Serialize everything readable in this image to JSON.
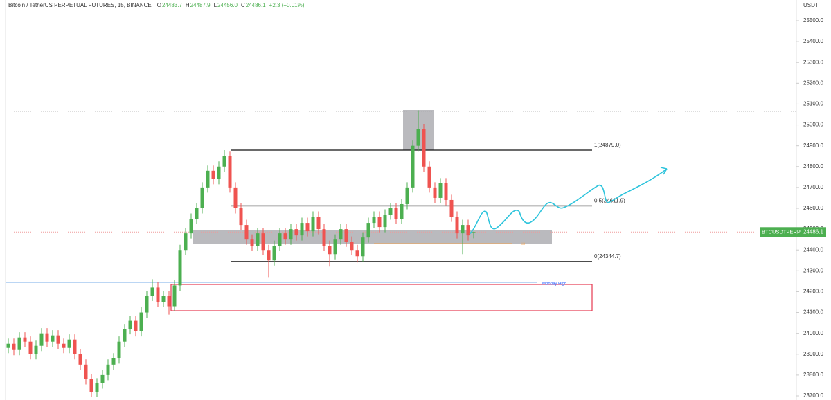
{
  "chart_data": {
    "type": "candlestick",
    "title": "Bitcoin / TetherUS PERPETUAL FUTURES, 15, BINANCE",
    "ohlc_info": [
      {
        "key": "O",
        "value": "24483.7"
      },
      {
        "key": "H",
        "value": "24487.9"
      },
      {
        "key": "L",
        "value": "24456.0"
      },
      {
        "key": "C",
        "value": "24486.1"
      }
    ],
    "change": "+2.3 (+0.01%)",
    "y_axis_title": "USDT",
    "up_color": "#4caf50",
    "down_color": "#ef5350",
    "open": [
      23930,
      23950,
      23920,
      23980,
      23960,
      23900,
      23940,
      24000,
      23960,
      23990,
      23950,
      23930,
      23970,
      23900,
      23850,
      23780,
      23720,
      23760,
      23800,
      23850,
      23880,
      23960,
      24020,
      24060,
      24010,
      24100,
      24180,
      24220,
      24150,
      24180,
      24130,
      24230,
      24400,
      24480,
      24550,
      24600,
      24700,
      24780,
      24740,
      24800,
      24850,
      24700,
      24600,
      24520,
      24450,
      24420,
      24480,
      24400,
      24350,
      24420,
      24480,
      24450,
      24500,
      24470,
      24530,
      24490,
      24560,
      24500,
      24420,
      24380,
      24450,
      24500,
      24440,
      24400,
      24370,
      24460,
      24530,
      24560,
      24510,
      24570,
      24600,
      24550,
      24620,
      24700,
      24900,
      24980,
      24800,
      24700,
      24650,
      24720,
      24640,
      24560,
      24480,
      24520,
      24483.7
    ],
    "high": [
      23975,
      23975,
      24005,
      24005,
      23985,
      23965,
      24025,
      24025,
      24015,
      24015,
      23975,
      23995,
      23995,
      23925,
      23875,
      23805,
      23785,
      23825,
      23875,
      23905,
      23985,
      24045,
      24085,
      24085,
      24125,
      24205,
      24260,
      24245,
      24205,
      24205,
      24255,
      24425,
      24505,
      24575,
      24625,
      24725,
      24805,
      24805,
      24825,
      24879,
      24875,
      24725,
      24625,
      24545,
      24475,
      24505,
      24505,
      24425,
      24445,
      24505,
      24505,
      24525,
      24525,
      24555,
      24555,
      24585,
      24585,
      24525,
      24445,
      24475,
      24525,
      24525,
      24465,
      24425,
      24485,
      24555,
      24585,
      24585,
      24595,
      24625,
      24625,
      24645,
      24725,
      24925,
      25070,
      25005,
      24825,
      24725,
      24745,
      24745,
      24665,
      24585,
      24545,
      24545,
      24487.9
    ],
    "low": [
      23905,
      23895,
      23895,
      23935,
      23875,
      23875,
      23915,
      23935,
      23935,
      23925,
      23905,
      23905,
      23875,
      23825,
      23755,
      23695,
      23695,
      23735,
      23775,
      23825,
      23855,
      23935,
      23995,
      23985,
      23985,
      24075,
      24155,
      24125,
      24125,
      24090,
      24105,
      24205,
      24375,
      24455,
      24525,
      24575,
      24675,
      24715,
      24715,
      24775,
      24675,
      24575,
      24495,
      24425,
      24395,
      24395,
      24375,
      24270,
      24325,
      24395,
      24425,
      24425,
      24445,
      24445,
      24465,
      24465,
      24475,
      24395,
      24320,
      24355,
      24425,
      24415,
      24375,
      24340,
      24345,
      24435,
      24505,
      24485,
      24485,
      24545,
      24525,
      24525,
      24595,
      24675,
      24875,
      24775,
      24675,
      24625,
      24625,
      24615,
      24535,
      24455,
      24380,
      24445,
      24456.0
    ],
    "close": [
      23950,
      23920,
      23980,
      23960,
      23900,
      23940,
      24000,
      23960,
      23990,
      23950,
      23930,
      23970,
      23900,
      23850,
      23780,
      23720,
      23760,
      23800,
      23850,
      23880,
      23960,
      24020,
      24060,
      24010,
      24100,
      24180,
      24220,
      24150,
      24180,
      24130,
      24230,
      24400,
      24480,
      24550,
      24600,
      24700,
      24780,
      24740,
      24800,
      24850,
      24700,
      24600,
      24520,
      24450,
      24420,
      24480,
      24400,
      24350,
      24420,
      24480,
      24450,
      24500,
      24470,
      24530,
      24490,
      24560,
      24500,
      24420,
      24380,
      24450,
      24500,
      24440,
      24400,
      24370,
      24460,
      24530,
      24560,
      24510,
      24570,
      24600,
      24550,
      24620,
      24700,
      24900,
      24980,
      24800,
      24700,
      24650,
      24720,
      24640,
      24560,
      24480,
      24520,
      24470,
      24486.1
    ],
    "ylim": [
      23700,
      25500
    ],
    "yticks": [
      {
        "value": 23700,
        "label": "23700.0"
      },
      {
        "value": 23800,
        "label": "23800.0"
      },
      {
        "value": 23900,
        "label": "23900.0"
      },
      {
        "value": 24000,
        "label": "24000.0"
      },
      {
        "value": 24100,
        "label": "24100.0"
      },
      {
        "value": 24200,
        "label": "24200.0"
      },
      {
        "value": 24300,
        "label": "24300.0"
      },
      {
        "value": 24400,
        "label": "24400.0"
      },
      {
        "value": 24500,
        "label": "24500.0"
      },
      {
        "value": 24600,
        "label": "24600.0"
      },
      {
        "value": 24700,
        "label": "24700.0"
      },
      {
        "value": 24800,
        "label": "24800.0"
      },
      {
        "value": 24900,
        "label": "24900.0"
      },
      {
        "value": 25000,
        "label": "25000.0"
      },
      {
        "value": 25100,
        "label": "25100.0"
      },
      {
        "value": 25200,
        "label": "25200.0"
      },
      {
        "value": 25300,
        "label": "25300.0"
      },
      {
        "value": 25400,
        "label": "25400.0"
      },
      {
        "value": 25500,
        "label": "25500.0"
      }
    ],
    "fib_levels": [
      {
        "value": 24879.0,
        "label": "1(24879.0)"
      },
      {
        "value": 24611.9,
        "label": "0.5(24611.9)"
      },
      {
        "value": 24344.7,
        "label": "0(24344.7)"
      }
    ],
    "price_tag": {
      "symbol": "BTCUSDTPERP",
      "value": 24486.1,
      "label": "24486.1"
    },
    "monday_high": {
      "value": 24245,
      "label": "Monday High"
    }
  }
}
